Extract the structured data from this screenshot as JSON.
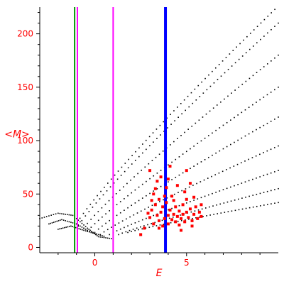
{
  "chart_data": {
    "type": "scatter",
    "xlabel": "E",
    "ylabel": "<M>",
    "xlim": [
      -3,
      10
    ],
    "ylim": [
      -5,
      225
    ],
    "x_ticks": [
      {
        "value": 0,
        "label": "0"
      },
      {
        "value": 5,
        "label": "5"
      }
    ],
    "y_ticks": [
      {
        "value": 0,
        "label": "0"
      },
      {
        "value": 50,
        "label": "50"
      },
      {
        "value": 100,
        "label": "100"
      },
      {
        "value": 150,
        "label": "150"
      },
      {
        "value": 200,
        "label": "200"
      }
    ],
    "grid": false,
    "vertical_lines": [
      {
        "x": -1.1,
        "color": "#009900",
        "style": "solid"
      },
      {
        "x": -0.95,
        "color": "#ff00ff",
        "style": "solid"
      },
      {
        "x": 1.0,
        "color": "#ff00ff",
        "style": "solid"
      },
      {
        "x": 3.85,
        "color": "#0000ff",
        "style": "solid-thick"
      }
    ],
    "series": [
      {
        "color": "#000000",
        "marker": "dot",
        "bands": [
          {
            "x": [
              -1.0,
              10.0
            ],
            "y": [
              22,
              226
            ]
          },
          {
            "x": [
              -0.9,
              10.0
            ],
            "y": [
              20,
              210
            ]
          },
          {
            "x": [
              -0.6,
              10.0
            ],
            "y": [
              18,
              180
            ]
          },
          {
            "x": [
              -0.4,
              10.0
            ],
            "y": [
              15,
              150
            ]
          },
          {
            "x": [
              0.0,
              10.0
            ],
            "y": [
              14,
              122
            ]
          },
          {
            "x": [
              0.3,
              10.0
            ],
            "y": [
              12,
              95
            ]
          },
          {
            "x": [
              0.8,
              10.0
            ],
            "y": [
              12,
              72
            ]
          },
          {
            "x": [
              1.3,
              10.0
            ],
            "y": [
              12,
              55
            ]
          },
          {
            "x": [
              1.8,
              10.0
            ],
            "y": [
              14,
              42
            ]
          }
        ],
        "curves": [
          {
            "x": [
              -3.0,
              -2.0,
              -1.2,
              -0.4,
              0.2,
              1.0
            ],
            "y": [
              27,
              32,
              30,
              18,
              10,
              8
            ]
          },
          {
            "x": [
              -2.5,
              -1.8,
              -1.0,
              -0.2,
              0.6
            ],
            "y": [
              22,
              26,
              22,
              14,
              10
            ]
          },
          {
            "x": [
              -2.0,
              -1.3,
              -0.6,
              0.2
            ],
            "y": [
              17,
              20,
              16,
              12
            ]
          }
        ]
      },
      {
        "color": "#ff0000",
        "marker": "square",
        "points": [
          [
            3.0,
            28
          ],
          [
            3.1,
            35
          ],
          [
            3.2,
            22
          ],
          [
            3.3,
            40
          ],
          [
            3.4,
            30
          ],
          [
            3.5,
            25
          ],
          [
            3.5,
            45
          ],
          [
            3.6,
            33
          ],
          [
            3.7,
            20
          ],
          [
            3.7,
            38
          ],
          [
            3.8,
            27
          ],
          [
            3.9,
            42
          ],
          [
            4.0,
            30
          ],
          [
            4.0,
            22
          ],
          [
            4.1,
            35
          ],
          [
            4.2,
            26
          ],
          [
            4.2,
            48
          ],
          [
            4.3,
            31
          ],
          [
            4.4,
            24
          ],
          [
            4.4,
            38
          ],
          [
            4.5,
            29
          ],
          [
            4.6,
            34
          ],
          [
            4.6,
            21
          ],
          [
            4.7,
            27
          ],
          [
            4.8,
            40
          ],
          [
            4.8,
            31
          ],
          [
            4.9,
            24
          ],
          [
            5.0,
            33
          ],
          [
            5.0,
            45
          ],
          [
            5.1,
            28
          ],
          [
            5.2,
            36
          ],
          [
            5.3,
            25
          ],
          [
            5.4,
            31
          ],
          [
            5.5,
            38
          ],
          [
            5.6,
            27
          ],
          [
            5.7,
            33
          ],
          [
            5.8,
            29
          ],
          [
            3.2,
            50
          ],
          [
            3.4,
            62
          ],
          [
            3.0,
            72
          ],
          [
            3.6,
            66
          ],
          [
            4.1,
            76
          ],
          [
            4.5,
            58
          ],
          [
            4.9,
            52
          ],
          [
            5.2,
            60
          ],
          [
            5.0,
            72
          ],
          [
            3.3,
            55
          ],
          [
            2.7,
            18
          ],
          [
            2.5,
            12
          ],
          [
            3.9,
            56
          ],
          [
            4.3,
            44
          ],
          [
            5.4,
            47
          ],
          [
            5.8,
            40
          ],
          [
            3.5,
            18
          ],
          [
            4.7,
            16
          ],
          [
            3.1,
            44
          ],
          [
            4.0,
            64
          ],
          [
            5.3,
            20
          ],
          [
            2.9,
            32
          ],
          [
            3.8,
            48
          ]
        ]
      }
    ]
  }
}
